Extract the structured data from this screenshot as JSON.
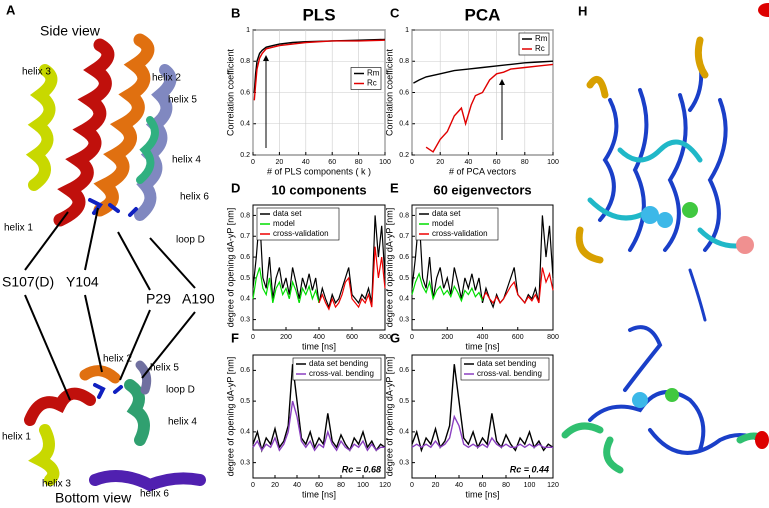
{
  "figure": {
    "panel_a": {
      "letter": "A",
      "side_view": "Side view",
      "bottom_view": "Bottom view",
      "side_labels": [
        "helix 3",
        "helix 2",
        "helix 5",
        "helix 4",
        "helix 6",
        "helix 1",
        "loop D"
      ],
      "residues": [
        "S107(D)",
        "Y104",
        "P29",
        "A190"
      ],
      "bottom_labels": [
        "helix 2",
        "helix 5",
        "loop D",
        "helix 1",
        "helix 4",
        "helix 3",
        "helix 6"
      ]
    },
    "panel_h": {
      "letter": "H"
    }
  },
  "chart_data": [
    {
      "type": "line",
      "panel_label": "B",
      "title": "PLS",
      "xlabel": "# of PLS components ( k )",
      "ylabel": "Correlation coefficient",
      "xlim": [
        0,
        100
      ],
      "ylim": [
        0.2,
        1.0
      ],
      "xticks": [
        0,
        20,
        40,
        60,
        80,
        100
      ],
      "yticks": [
        0.2,
        0.4,
        0.6,
        0.8,
        1
      ],
      "grid": true,
      "legend": "right",
      "series": [
        {
          "name": "Rm",
          "color": "#000000",
          "x": [
            1,
            2,
            3,
            5,
            7,
            10,
            15,
            20,
            30,
            40,
            60,
            80,
            100
          ],
          "values": [
            0.6,
            0.72,
            0.8,
            0.85,
            0.87,
            0.89,
            0.9,
            0.91,
            0.92,
            0.925,
            0.93,
            0.935,
            0.94
          ]
        },
        {
          "name": "Rc",
          "color": "#e00000",
          "x": [
            1,
            2,
            3,
            5,
            7,
            10,
            15,
            20,
            30,
            40,
            60,
            80,
            100
          ],
          "values": [
            0.55,
            0.65,
            0.75,
            0.82,
            0.85,
            0.88,
            0.89,
            0.9,
            0.91,
            0.92,
            0.93,
            0.93,
            0.935
          ]
        }
      ]
    },
    {
      "type": "line",
      "panel_label": "C",
      "title": "PCA",
      "xlabel": "# of PCA vectors",
      "ylabel": "Correlation coefficient",
      "xlim": [
        0,
        100
      ],
      "ylim": [
        0.2,
        1.0
      ],
      "xticks": [
        0,
        20,
        40,
        60,
        80,
        100
      ],
      "yticks": [
        0.2,
        0.4,
        0.6,
        0.8,
        1
      ],
      "grid": true,
      "legend": "upper right",
      "series": [
        {
          "name": "Rm",
          "color": "#000000",
          "x": [
            1,
            5,
            10,
            20,
            30,
            40,
            50,
            60,
            70,
            80,
            90,
            100
          ],
          "values": [
            0.66,
            0.68,
            0.7,
            0.72,
            0.74,
            0.75,
            0.76,
            0.77,
            0.78,
            0.79,
            0.795,
            0.8
          ]
        },
        {
          "name": "Rc",
          "color": "#e00000",
          "x": [
            10,
            15,
            20,
            25,
            30,
            35,
            38,
            42,
            45,
            50,
            55,
            60,
            65,
            70,
            80,
            90,
            100
          ],
          "values": [
            0.25,
            0.22,
            0.3,
            0.35,
            0.45,
            0.5,
            0.4,
            0.52,
            0.58,
            0.6,
            0.68,
            0.72,
            0.73,
            0.75,
            0.76,
            0.77,
            0.78
          ]
        }
      ]
    },
    {
      "type": "line",
      "panel_label": "D",
      "title": "10 components",
      "xlabel": "time [ns]",
      "ylabel": "degree of opening dA-yP [nm]",
      "xlim": [
        0,
        800
      ],
      "ylim": [
        0.25,
        0.85
      ],
      "xticks": [
        0,
        200,
        400,
        600,
        800
      ],
      "yticks": [
        0.3,
        0.4,
        0.5,
        0.6,
        0.7,
        0.8
      ],
      "grid": false,
      "legend": "upper left",
      "series": [
        {
          "name": "data set",
          "color": "#000000",
          "x": [
            0,
            20,
            40,
            60,
            80,
            100,
            120,
            140,
            160,
            180,
            200,
            220,
            240,
            260,
            280,
            300,
            320,
            340,
            360,
            380,
            400,
            420,
            440,
            460,
            480,
            500,
            520,
            540,
            560,
            580,
            600,
            620,
            640,
            660,
            680,
            700,
            720,
            740,
            760,
            780,
            800
          ],
          "values": [
            0.45,
            0.6,
            0.8,
            0.5,
            0.45,
            0.6,
            0.4,
            0.5,
            0.55,
            0.45,
            0.5,
            0.42,
            0.55,
            0.48,
            0.4,
            0.5,
            0.45,
            0.52,
            0.44,
            0.5,
            0.38,
            0.45,
            0.4,
            0.36,
            0.42,
            0.38,
            0.4,
            0.45,
            0.5,
            0.55,
            0.42,
            0.4,
            0.38,
            0.42,
            0.4,
            0.45,
            0.38,
            0.8,
            0.6,
            0.75,
            0.5
          ]
        },
        {
          "name": "model",
          "color": "#00dd00",
          "x": [
            0,
            20,
            40,
            60,
            80,
            100,
            120,
            140,
            160,
            180,
            200,
            220,
            240,
            260,
            280,
            300,
            320,
            340,
            360,
            380,
            400
          ],
          "values": [
            0.4,
            0.5,
            0.55,
            0.45,
            0.42,
            0.5,
            0.38,
            0.45,
            0.48,
            0.42,
            0.45,
            0.4,
            0.48,
            0.44,
            0.38,
            0.45,
            0.42,
            0.46,
            0.4,
            0.44,
            0.38
          ]
        },
        {
          "name": "cross-validation",
          "color": "#ee0000",
          "x": [
            400,
            420,
            440,
            460,
            480,
            500,
            520,
            540,
            560,
            580,
            600,
            620,
            640,
            660,
            680,
            700,
            720,
            740,
            760,
            780,
            800
          ],
          "values": [
            0.38,
            0.42,
            0.38,
            0.35,
            0.4,
            0.36,
            0.38,
            0.42,
            0.48,
            0.5,
            0.4,
            0.38,
            0.36,
            0.4,
            0.38,
            0.42,
            0.36,
            0.65,
            0.5,
            0.6,
            0.45
          ]
        }
      ]
    },
    {
      "type": "line",
      "panel_label": "E",
      "title": "60 eigenvectors",
      "xlabel": "time [ns]",
      "ylabel": "degree of opening dA-yP [nm]",
      "xlim": [
        0,
        800
      ],
      "ylim": [
        0.25,
        0.85
      ],
      "xticks": [
        0,
        200,
        400,
        600,
        800
      ],
      "yticks": [
        0.3,
        0.4,
        0.5,
        0.6,
        0.7,
        0.8
      ],
      "grid": false,
      "legend": "upper left",
      "series": [
        {
          "name": "data set",
          "color": "#000000",
          "x": [
            0,
            20,
            40,
            60,
            80,
            100,
            120,
            140,
            160,
            180,
            200,
            220,
            240,
            260,
            280,
            300,
            320,
            340,
            360,
            380,
            400,
            420,
            440,
            460,
            480,
            500,
            520,
            540,
            560,
            580,
            600,
            620,
            640,
            660,
            680,
            700,
            720,
            740,
            760,
            780,
            800
          ],
          "values": [
            0.45,
            0.6,
            0.8,
            0.5,
            0.45,
            0.6,
            0.4,
            0.5,
            0.55,
            0.45,
            0.5,
            0.42,
            0.55,
            0.48,
            0.4,
            0.5,
            0.45,
            0.52,
            0.44,
            0.5,
            0.38,
            0.45,
            0.4,
            0.36,
            0.42,
            0.38,
            0.4,
            0.45,
            0.5,
            0.55,
            0.42,
            0.4,
            0.38,
            0.42,
            0.4,
            0.45,
            0.38,
            0.8,
            0.6,
            0.75,
            0.5
          ]
        },
        {
          "name": "model",
          "color": "#00dd00",
          "x": [
            0,
            20,
            40,
            60,
            80,
            100,
            120,
            140,
            160,
            180,
            200,
            220,
            240,
            260,
            280,
            300,
            320,
            340,
            360,
            380,
            400
          ],
          "values": [
            0.42,
            0.48,
            0.52,
            0.46,
            0.43,
            0.48,
            0.4,
            0.44,
            0.46,
            0.42,
            0.44,
            0.41,
            0.46,
            0.43,
            0.39,
            0.44,
            0.42,
            0.45,
            0.41,
            0.43,
            0.39
          ]
        },
        {
          "name": "cross-validation",
          "color": "#ee0000",
          "x": [
            400,
            420,
            440,
            460,
            480,
            500,
            520,
            540,
            560,
            580,
            600,
            620,
            640,
            660,
            680,
            700,
            720,
            740,
            760,
            780,
            800
          ],
          "values": [
            0.4,
            0.43,
            0.4,
            0.38,
            0.41,
            0.38,
            0.4,
            0.43,
            0.46,
            0.48,
            0.42,
            0.4,
            0.38,
            0.41,
            0.39,
            0.42,
            0.38,
            0.55,
            0.48,
            0.52,
            0.44
          ]
        }
      ]
    },
    {
      "type": "line",
      "panel_label": "F",
      "xlabel": "time [ns]",
      "ylabel": "degree of opening dA-yP [nm]",
      "annotation": "Rc = 0.68",
      "xlim": [
        0,
        120
      ],
      "ylim": [
        0.25,
        0.65
      ],
      "xticks": [
        0,
        20,
        40,
        60,
        80,
        100,
        120
      ],
      "yticks": [
        0.3,
        0.4,
        0.5,
        0.6
      ],
      "grid": false,
      "legend": "upper right",
      "series": [
        {
          "name": "data set bending",
          "color": "#000000",
          "x": [
            0,
            4,
            8,
            12,
            16,
            20,
            24,
            28,
            32,
            36,
            40,
            44,
            48,
            52,
            56,
            60,
            64,
            68,
            72,
            76,
            80,
            84,
            88,
            92,
            96,
            100,
            104,
            108,
            112,
            116,
            120
          ],
          "values": [
            0.36,
            0.4,
            0.34,
            0.38,
            0.36,
            0.41,
            0.35,
            0.37,
            0.42,
            0.62,
            0.5,
            0.38,
            0.36,
            0.4,
            0.35,
            0.38,
            0.36,
            0.46,
            0.37,
            0.35,
            0.39,
            0.36,
            0.34,
            0.38,
            0.36,
            0.4,
            0.35,
            0.37,
            0.34,
            0.36,
            0.35
          ]
        },
        {
          "name": "cross-val. bending",
          "color": "#8a3fc0",
          "x": [
            0,
            4,
            8,
            12,
            16,
            20,
            24,
            28,
            32,
            36,
            40,
            44,
            48,
            52,
            56,
            60,
            64,
            68,
            72,
            76,
            80,
            84,
            88,
            92,
            96,
            100,
            104,
            108,
            112,
            116,
            120
          ],
          "values": [
            0.35,
            0.37,
            0.34,
            0.36,
            0.35,
            0.38,
            0.34,
            0.36,
            0.4,
            0.5,
            0.45,
            0.37,
            0.35,
            0.37,
            0.34,
            0.36,
            0.35,
            0.4,
            0.36,
            0.34,
            0.37,
            0.35,
            0.34,
            0.36,
            0.35,
            0.37,
            0.34,
            0.36,
            0.34,
            0.35,
            0.35
          ]
        }
      ]
    },
    {
      "type": "line",
      "panel_label": "G",
      "xlabel": "time [ns]",
      "ylabel": "degree of opening dA-yP [nm]",
      "annotation": "Rc = 0.44",
      "xlim": [
        0,
        120
      ],
      "ylim": [
        0.25,
        0.65
      ],
      "xticks": [
        0,
        20,
        40,
        60,
        80,
        100,
        120
      ],
      "yticks": [
        0.3,
        0.4,
        0.5,
        0.6
      ],
      "grid": false,
      "legend": "upper right",
      "series": [
        {
          "name": "data set bending",
          "color": "#000000",
          "x": [
            0,
            4,
            8,
            12,
            16,
            20,
            24,
            28,
            32,
            36,
            40,
            44,
            48,
            52,
            56,
            60,
            64,
            68,
            72,
            76,
            80,
            84,
            88,
            92,
            96,
            100,
            104,
            108,
            112,
            116,
            120
          ],
          "values": [
            0.36,
            0.4,
            0.34,
            0.38,
            0.36,
            0.41,
            0.35,
            0.37,
            0.42,
            0.62,
            0.5,
            0.38,
            0.36,
            0.4,
            0.35,
            0.38,
            0.36,
            0.46,
            0.37,
            0.35,
            0.39,
            0.36,
            0.34,
            0.38,
            0.36,
            0.4,
            0.35,
            0.37,
            0.34,
            0.36,
            0.35
          ]
        },
        {
          "name": "cross-val. bending",
          "color": "#8a3fc0",
          "x": [
            0,
            4,
            8,
            12,
            16,
            20,
            24,
            28,
            32,
            36,
            40,
            44,
            48,
            52,
            56,
            60,
            64,
            68,
            72,
            76,
            80,
            84,
            88,
            92,
            96,
            100,
            104,
            108,
            112,
            116,
            120
          ],
          "values": [
            0.35,
            0.36,
            0.35,
            0.36,
            0.35,
            0.37,
            0.35,
            0.36,
            0.38,
            0.45,
            0.42,
            0.36,
            0.35,
            0.36,
            0.35,
            0.36,
            0.35,
            0.38,
            0.36,
            0.35,
            0.36,
            0.35,
            0.35,
            0.36,
            0.35,
            0.36,
            0.35,
            0.36,
            0.35,
            0.35,
            0.35
          ]
        }
      ]
    }
  ]
}
